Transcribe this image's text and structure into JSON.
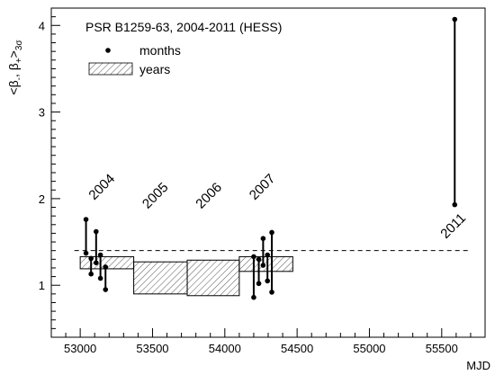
{
  "chart_data": {
    "type": "scatter",
    "title": "PSR B1259-63, 2004-2011 (HESS)",
    "xlabel": "MJD",
    "ylabel_main": "<β",
    "ylabel_sub1": "-",
    "ylabel_mid": ", β",
    "ylabel_sub2": "+",
    "ylabel_tail": ">",
    "ylabel_sub3": "3σ",
    "xlim": [
      52800,
      55800
    ],
    "ylim": [
      0.4,
      4.2
    ],
    "x_ticks": [
      53000,
      53500,
      54000,
      54500,
      55000,
      55500
    ],
    "x_tick_labels": [
      "53000",
      "53500",
      "54000",
      "54500",
      "55000",
      "55500"
    ],
    "y_ticks": [
      1,
      2,
      3,
      4
    ],
    "y_tick_labels": [
      "1",
      "2",
      "3",
      "4"
    ],
    "reference_line_y": 1.4,
    "legend": {
      "placement": "top-left",
      "months_label": "months",
      "years_label": "years"
    },
    "series": [
      {
        "name": "months",
        "points": [
          {
            "x": 53040,
            "low": 1.37,
            "high": 1.76
          },
          {
            "x": 53075,
            "low": 1.13,
            "high": 1.31
          },
          {
            "x": 53110,
            "low": 1.26,
            "high": 1.62
          },
          {
            "x": 53140,
            "low": 1.08,
            "high": 1.35
          },
          {
            "x": 53175,
            "low": 0.95,
            "high": 1.21
          },
          {
            "x": 54200,
            "low": 0.86,
            "high": 1.33
          },
          {
            "x": 54235,
            "low": 1.02,
            "high": 1.3
          },
          {
            "x": 54265,
            "low": 1.23,
            "high": 1.54
          },
          {
            "x": 54295,
            "low": 1.05,
            "high": 1.35
          },
          {
            "x": 54325,
            "low": 0.92,
            "high": 1.61
          },
          {
            "x": 55590,
            "low": 1.93,
            "high": 4.07
          }
        ]
      },
      {
        "name": "years",
        "boxes": [
          {
            "x0": 53000,
            "x1": 53370,
            "y0": 1.19,
            "y1": 1.33
          },
          {
            "x0": 53370,
            "x1": 53740,
            "y0": 0.9,
            "y1": 1.27
          },
          {
            "x0": 53740,
            "x1": 54100,
            "y0": 0.88,
            "y1": 1.29
          },
          {
            "x0": 54100,
            "x1": 54470,
            "y0": 1.16,
            "y1": 1.33
          }
        ]
      }
    ],
    "annotations": [
      {
        "text": "2004",
        "x": 53170,
        "y": 2.1
      },
      {
        "text": "2005",
        "x": 53540,
        "y": 2.0
      },
      {
        "text": "2006",
        "x": 53910,
        "y": 2.0
      },
      {
        "text": "2007",
        "x": 54280,
        "y": 2.1
      },
      {
        "text": "2011",
        "x": 55600,
        "y": 1.65
      }
    ]
  }
}
